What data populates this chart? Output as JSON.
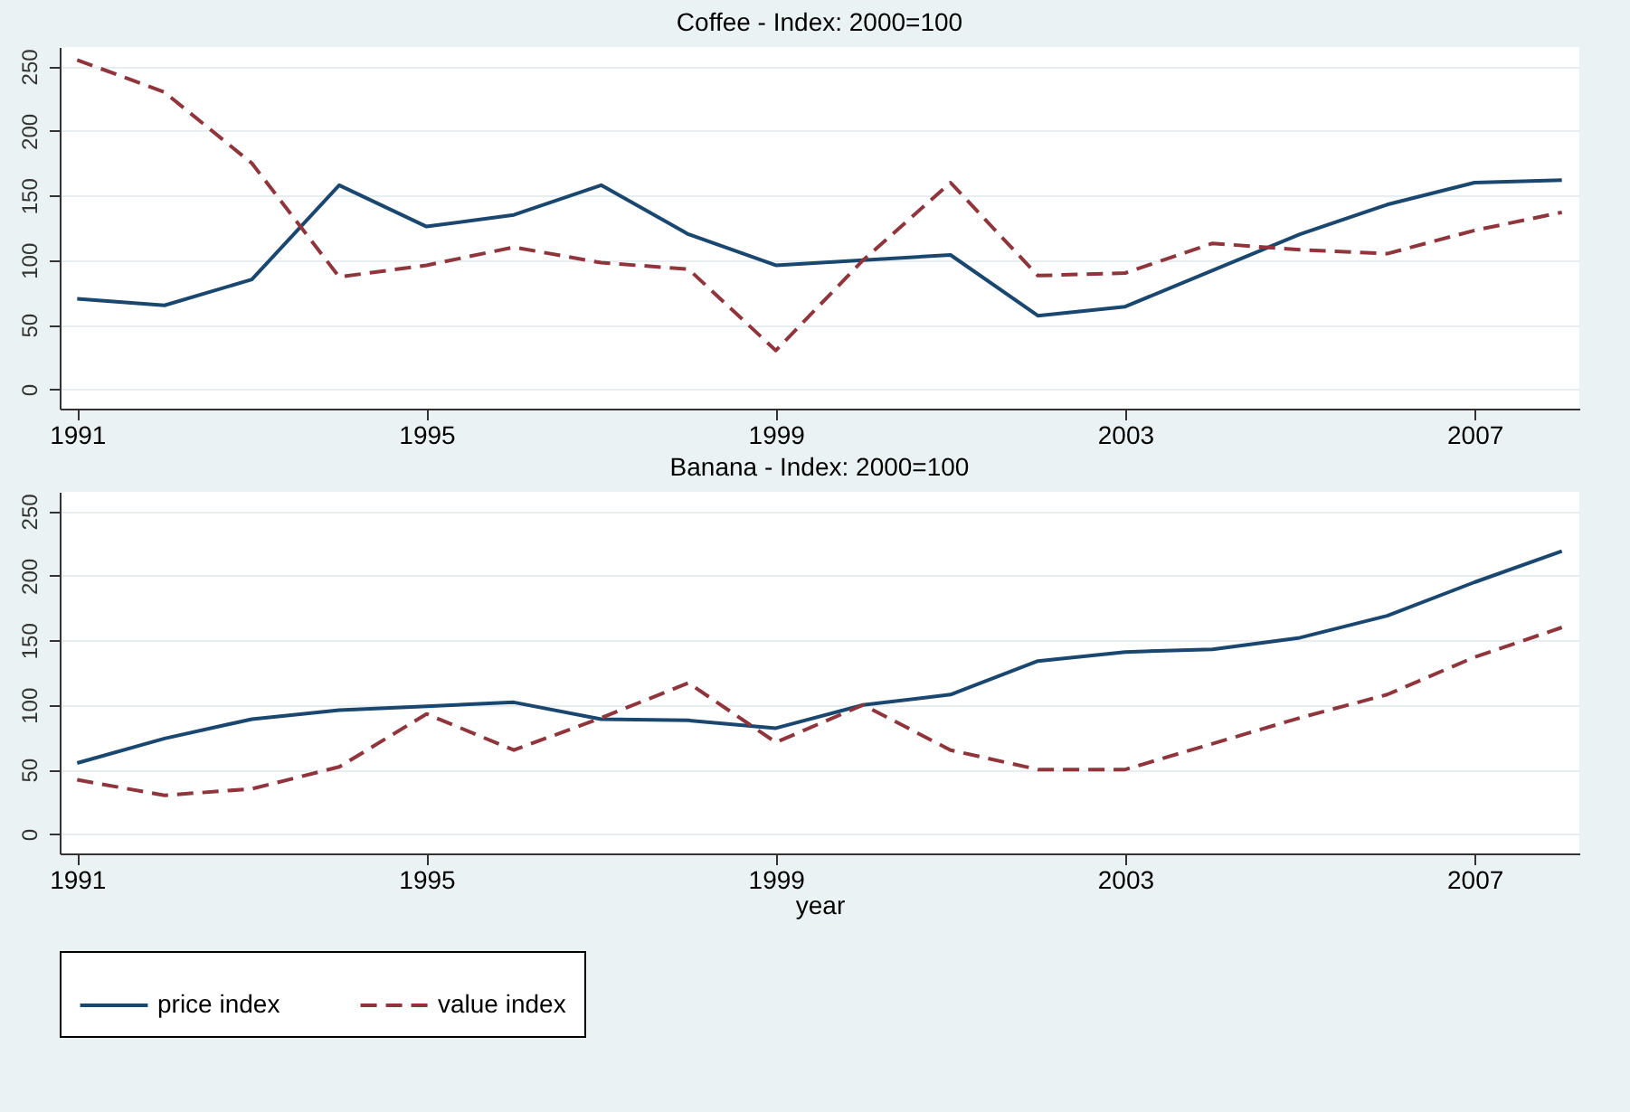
{
  "chart_data": [
    {
      "type": "line",
      "title": "Coffee - Index: 2000=100",
      "x": [
        1991,
        1992,
        1993,
        1994,
        1995,
        1996,
        1997,
        1998,
        1999,
        2000,
        2001,
        2002,
        2003,
        2004,
        2005,
        2006,
        2007,
        2008
      ],
      "series": [
        {
          "name": "price index",
          "color": "#1a476f",
          "line_style": "solid",
          "values": [
            70,
            65,
            85,
            158,
            126,
            135,
            158,
            120,
            96,
            100,
            104,
            57,
            64,
            92,
            120,
            143,
            160,
            162
          ]
        },
        {
          "name": "value index",
          "color": "#90353b",
          "line_style": "dashed",
          "values": [
            255,
            230,
            175,
            87,
            96,
            110,
            98,
            93,
            30,
            100,
            160,
            88,
            90,
            113,
            108,
            105,
            123,
            137
          ]
        }
      ],
      "xlim": [
        1990.8,
        2008.2
      ],
      "xticks": [
        1991,
        1995,
        1999,
        2003,
        2007
      ],
      "ylim": [
        -15,
        265
      ],
      "yticks": [
        0,
        50,
        100,
        150,
        200,
        250
      ],
      "grid": "y",
      "legend": "bottom"
    },
    {
      "type": "line",
      "title": "Banana - Index: 2000=100",
      "xlabel": "year",
      "x": [
        1991,
        1992,
        1993,
        1994,
        1995,
        1996,
        1997,
        1998,
        1999,
        2000,
        2001,
        2002,
        2003,
        2004,
        2005,
        2006,
        2007,
        2008
      ],
      "series": [
        {
          "name": "price index",
          "color": "#1a476f",
          "line_style": "solid",
          "values": [
            55,
            74,
            89,
            96,
            99,
            102,
            89,
            88,
            82,
            100,
            108,
            134,
            141,
            143,
            152,
            169,
            195,
            219
          ]
        },
        {
          "name": "value index",
          "color": "#90353b",
          "line_style": "dashed",
          "values": [
            42,
            30,
            35,
            52,
            93,
            65,
            90,
            117,
            71,
            100,
            65,
            50,
            50,
            70,
            90,
            108,
            137,
            160
          ]
        }
      ],
      "xlim": [
        1990.8,
        2008.2
      ],
      "xticks": [
        1991,
        1995,
        1999,
        2003,
        2007
      ],
      "ylim": [
        -15,
        265
      ],
      "yticks": [
        0,
        50,
        100,
        150,
        200,
        250
      ],
      "grid": "y",
      "legend": "bottom"
    }
  ]
}
